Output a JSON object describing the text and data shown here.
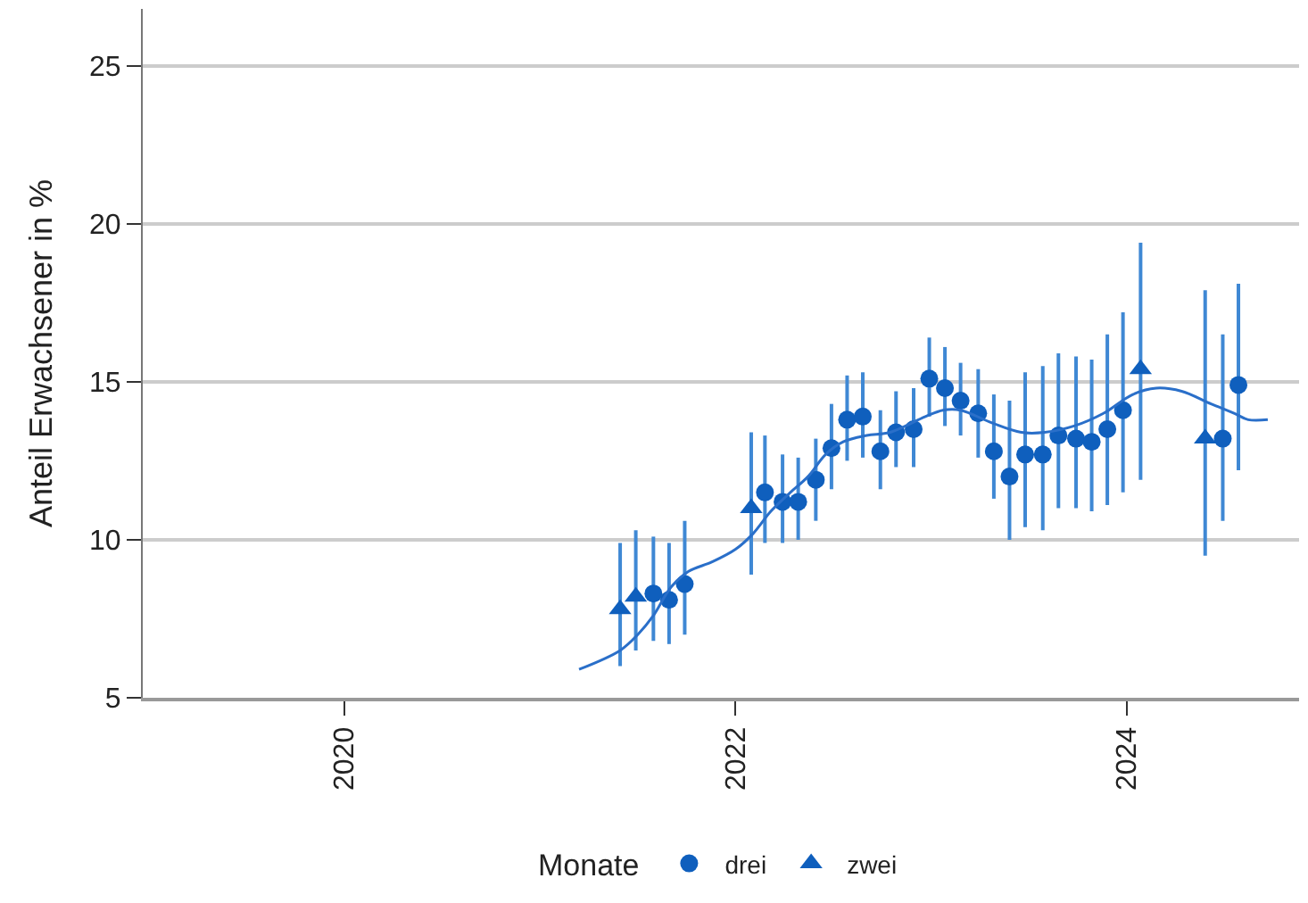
{
  "chart_data": {
    "type": "scatter",
    "ylabel": "Anteil Erwachsener in %",
    "legend_title": "Monate",
    "legend": "bottom",
    "grid": "y",
    "xlim": [
      2018.97,
      2024.88
    ],
    "xticks": [
      2020,
      2022,
      2024
    ],
    "ylim": [
      5,
      26.8
    ],
    "yticks": [
      5,
      10,
      15,
      20,
      25
    ],
    "series": [
      {
        "name": "drei",
        "marker": "circle",
        "color": "#0f5fbd",
        "x": [
          2021.58,
          2021.66,
          2021.74,
          2022.15,
          2022.24,
          2022.32,
          2022.41,
          2022.49,
          2022.57,
          2022.65,
          2022.74,
          2022.82,
          2022.91,
          2022.99,
          2023.07,
          2023.15,
          2023.24,
          2023.32,
          2023.4,
          2023.48,
          2023.57,
          2023.65,
          2023.74,
          2023.82,
          2023.9,
          2023.98,
          2024.49,
          2024.57
        ],
        "values": [
          8.3,
          8.1,
          8.6,
          11.5,
          11.2,
          11.2,
          11.9,
          12.9,
          13.8,
          13.9,
          12.8,
          13.4,
          13.5,
          15.1,
          14.8,
          14.4,
          14.0,
          12.8,
          12.0,
          12.7,
          12.7,
          13.3,
          13.2,
          13.1,
          13.5,
          14.1,
          13.2,
          14.9
        ],
        "errors": [
          [
            6.8,
            10.1
          ],
          [
            6.7,
            9.9
          ],
          [
            7.0,
            10.6
          ],
          [
            9.9,
            13.3
          ],
          [
            9.9,
            12.7
          ],
          [
            10.0,
            12.6
          ],
          [
            10.6,
            13.2
          ],
          [
            11.6,
            14.3
          ],
          [
            12.5,
            15.2
          ],
          [
            12.6,
            15.3
          ],
          [
            11.6,
            14.1
          ],
          [
            12.3,
            14.7
          ],
          [
            12.3,
            14.8
          ],
          [
            13.9,
            16.4
          ],
          [
            13.6,
            16.1
          ],
          [
            13.3,
            15.6
          ],
          [
            12.6,
            15.4
          ],
          [
            11.3,
            14.6
          ],
          [
            10.0,
            14.4
          ],
          [
            10.4,
            15.3
          ],
          [
            10.3,
            15.5
          ],
          [
            11.0,
            15.9
          ],
          [
            11.0,
            15.8
          ],
          [
            10.9,
            15.7
          ],
          [
            11.1,
            16.5
          ],
          [
            11.5,
            17.2
          ],
          [
            10.6,
            16.5
          ],
          [
            12.2,
            18.1
          ]
        ]
      },
      {
        "name": "zwei",
        "marker": "triangle",
        "color": "#0f5fbd",
        "x": [
          2021.41,
          2021.49,
          2022.08,
          2024.07,
          2024.4
        ],
        "values": [
          7.8,
          8.2,
          11.0,
          15.4,
          13.2
        ],
        "errors": [
          [
            6.0,
            9.9
          ],
          [
            6.5,
            10.3
          ],
          [
            8.9,
            13.4
          ],
          [
            11.9,
            19.4
          ],
          [
            9.5,
            17.9
          ]
        ]
      },
      {
        "type": "line",
        "marker": "none",
        "color": "#2a6fc9",
        "x": [
          2021.2,
          2021.41,
          2021.5,
          2021.58,
          2021.67,
          2021.76,
          2021.88,
          2022.0,
          2022.09,
          2022.18,
          2022.28,
          2022.37,
          2022.46,
          2022.55,
          2022.67,
          2022.79,
          2022.97,
          2023.06,
          2023.15,
          2023.31,
          2023.46,
          2023.58,
          2023.73,
          2023.88,
          2024.03,
          2024.15,
          2024.28,
          2024.43,
          2024.55,
          2024.62,
          2024.72
        ],
        "values": [
          5.9,
          6.5,
          7.0,
          7.6,
          8.5,
          9.0,
          9.3,
          9.7,
          10.2,
          10.9,
          11.5,
          12.0,
          12.7,
          13.1,
          13.3,
          13.4,
          13.9,
          14.1,
          14.1,
          13.7,
          13.4,
          13.4,
          13.6,
          14.0,
          14.6,
          14.8,
          14.7,
          14.3,
          14.0,
          13.8,
          13.8
        ]
      }
    ]
  }
}
